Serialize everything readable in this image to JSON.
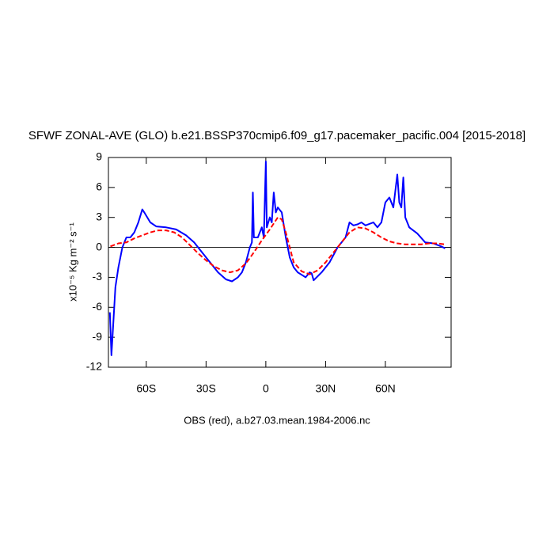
{
  "chart_data": {
    "type": "line",
    "title": "SFWF ZONAL-AVE (GLO) b.e21.BSSP370cmip6.f09_g17.pacemaker_pacific.004 [2015-2018]",
    "y_label": "x10⁻⁵ Kg m⁻² s⁻¹",
    "x_label": "OBS (red), a.b27.03.mean.1984-2006.nc",
    "xlim": [
      -79,
      93
    ],
    "ylim": [
      -12,
      9
    ],
    "xticks": [
      {
        "value": -60,
        "label": "60S"
      },
      {
        "value": -30,
        "label": "30S"
      },
      0,
      {
        "value": 30,
        "label": "30N"
      },
      {
        "value": 60,
        "label": "60N"
      }
    ],
    "yticks": [
      9,
      6,
      3,
      0,
      -3,
      -6,
      -9,
      -12
    ],
    "reference_line": 0,
    "series": [
      {
        "color": "#0000ff",
        "dash": false,
        "x": [
          -78.3,
          -77.5,
          -75.5,
          -74,
          -72,
          -70,
          -68,
          -66,
          -64,
          -62,
          -61,
          -58,
          -55,
          -50,
          -45,
          -40,
          -36,
          -32,
          -28,
          -24,
          -20,
          -17,
          -14,
          -12,
          -10,
          -8,
          -7,
          -6.5,
          -6,
          -4,
          -3,
          -2,
          -1,
          0,
          0.5,
          2,
          3,
          4,
          5,
          6,
          8,
          10,
          12,
          14,
          16,
          20,
          22,
          23,
          24,
          28,
          32,
          36,
          40,
          42,
          44,
          46,
          48,
          50,
          54,
          56,
          58,
          60,
          62,
          64,
          66,
          67,
          68,
          69,
          70,
          72,
          76,
          80,
          84,
          88,
          90
        ],
        "values": [
          -6.5,
          -10.8,
          -4,
          -2,
          0,
          1,
          1,
          1.5,
          2.5,
          3.8,
          3.5,
          2.5,
          2.1,
          2,
          1.8,
          1.2,
          0.5,
          -0.5,
          -1.5,
          -2.5,
          -3.2,
          -3.4,
          -3,
          -2.5,
          -1.5,
          0,
          0.5,
          5.5,
          1,
          1,
          1.5,
          2,
          1,
          8.6,
          2,
          3,
          2.5,
          5.5,
          3.5,
          4,
          3.5,
          1,
          -1,
          -2,
          -2.5,
          -3,
          -2.5,
          -2.6,
          -3.3,
          -2.5,
          -1.5,
          0,
          1,
          2.5,
          2.2,
          2.3,
          2.5,
          2.2,
          2.5,
          2,
          2.5,
          4.5,
          5,
          4,
          7.3,
          4.5,
          4,
          7,
          3,
          2,
          1.4,
          0.5,
          0.4,
          0.1,
          -0.1
        ]
      },
      {
        "color": "#ff0000",
        "dash": true,
        "x": [
          -78,
          -74,
          -70,
          -66,
          -62,
          -58,
          -54,
          -50,
          -46,
          -42,
          -38,
          -34,
          -30,
          -26,
          -22,
          -18,
          -14,
          -10,
          -6,
          -2,
          2,
          6,
          8,
          10,
          12,
          14,
          18,
          22,
          26,
          30,
          34,
          38,
          42,
          46,
          50,
          54,
          58,
          62,
          66,
          70,
          74,
          78,
          82,
          86,
          90
        ],
        "values": [
          0.1,
          0.4,
          0.5,
          0.9,
          1.2,
          1.5,
          1.7,
          1.7,
          1.5,
          1,
          0.2,
          -0.6,
          -1.3,
          -1.9,
          -2.3,
          -2.5,
          -2.3,
          -1.6,
          -0.5,
          0.7,
          1.8,
          3,
          2.8,
          1.5,
          0,
          -1.5,
          -2.4,
          -2.7,
          -2.3,
          -1.5,
          -0.5,
          0.5,
          1.5,
          2,
          1.9,
          1.5,
          1,
          0.6,
          0.4,
          0.3,
          0.3,
          0.3,
          0.4,
          0.4,
          0.3
        ]
      }
    ]
  }
}
